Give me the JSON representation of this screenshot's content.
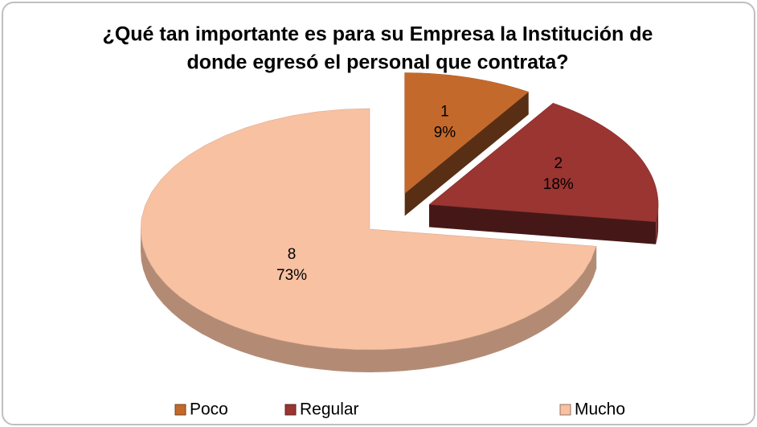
{
  "chart_data": {
    "type": "pie",
    "title_lines": [
      "¿Qué tan importante es para su Empresa la Institución de",
      "donde egresó el personal que contrata?"
    ],
    "categories": [
      "Poco",
      "Regular",
      "Mucho"
    ],
    "values": [
      1,
      2,
      8
    ],
    "percent_labels": [
      "9%",
      "18%",
      "73%"
    ],
    "colors": [
      "#c4692c",
      "#9a3532",
      "#f8c1a2"
    ],
    "legend": "bottom"
  }
}
